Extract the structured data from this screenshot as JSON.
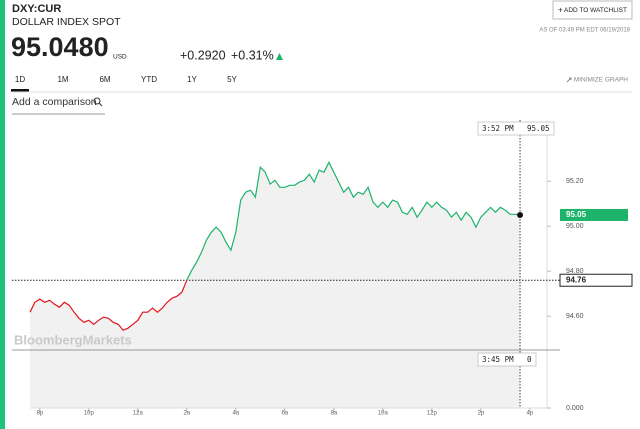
{
  "header": {
    "ticker": "DXY:CUR",
    "name": "DOLLAR INDEX SPOT",
    "price": "95.0480",
    "currency": "USD",
    "change": "+0.2920",
    "change_percent": "+0.31%",
    "watchlist_button": "ADD TO WATCHLIST",
    "as_of": "AS OF 03:49 PM EDT 06/19/2018"
  },
  "tabs": [
    "1D",
    "1M",
    "6M",
    "YTD",
    "1Y",
    "5Y"
  ],
  "active_tab": 0,
  "minimize": "MINIMIZE GRAPH",
  "comparison_placeholder": "Add a comparison",
  "watermark": "BloombergMarkets",
  "chart_data": {
    "type": "line",
    "color_above": "#1db36b",
    "color_below": "#e3131b",
    "previous_close": 94.76,
    "last_value": 95.05,
    "crosshair": {
      "time": "3:52 PM",
      "value": 95.05
    },
    "volume_yticks": [
      {
        "value": 0,
        "label": "0.000"
      }
    ],
    "volume_crosshair": {
      "time": "3:45 PM",
      "value": 0
    },
    "xlim": [
      19.6,
      40.7
    ],
    "ylim": [
      94.45,
      95.472
    ],
    "xticks": [
      {
        "value": 20,
        "label": "8p"
      },
      {
        "value": 22,
        "label": "10p"
      },
      {
        "value": 24,
        "label": "12a"
      },
      {
        "value": 26,
        "label": "2a"
      },
      {
        "value": 28,
        "label": "4a"
      },
      {
        "value": 30,
        "label": "6a"
      },
      {
        "value": 32,
        "label": "8a"
      },
      {
        "value": 34,
        "label": "10a"
      },
      {
        "value": 36,
        "label": "12p"
      },
      {
        "value": 38,
        "label": "2p"
      },
      {
        "value": 40,
        "label": "4p"
      }
    ],
    "yticks": [
      {
        "value": 94.6,
        "label": "94.60"
      },
      {
        "value": 94.8,
        "label": "94.80"
      },
      {
        "value": 95,
        "label": "95.00"
      },
      {
        "value": 95.2,
        "label": "95.20"
      }
    ],
    "x": [
      19.6,
      19.8,
      20,
      20.2,
      20.4,
      20.6,
      20.8,
      21,
      21.2,
      21.4,
      21.6,
      21.8,
      22,
      22.2,
      22.4,
      22.6,
      22.8,
      23,
      23.2,
      23.4,
      23.6,
      23.8,
      24,
      24.2,
      24.4,
      24.6,
      24.8,
      25,
      25.2,
      25.4,
      25.6,
      25.8,
      26,
      26.2,
      26.4,
      26.6,
      26.8,
      27,
      27.2,
      27.4,
      27.6,
      27.8,
      28,
      28.2,
      28.4,
      28.6,
      28.8,
      29,
      29.2,
      29.4,
      29.6,
      29.8,
      30,
      30.2,
      30.4,
      30.6,
      30.8,
      31,
      31.2,
      31.4,
      31.6,
      31.8,
      32,
      32.2,
      32.4,
      32.6,
      32.8,
      33,
      33.2,
      33.4,
      33.6,
      33.8,
      34,
      34.2,
      34.4,
      34.6,
      34.8,
      35,
      35.2,
      35.4,
      35.6,
      35.8,
      36,
      36.2,
      36.4,
      36.6,
      36.8,
      37,
      37.2,
      37.4,
      37.6,
      37.8,
      38,
      38.2,
      38.4,
      38.6,
      38.8,
      39,
      39.2,
      39.4,
      39.6
    ],
    "values": [
      94.618,
      94.662,
      94.676,
      94.662,
      94.671,
      94.653,
      94.64,
      94.662,
      94.649,
      94.618,
      94.591,
      94.573,
      94.582,
      94.564,
      94.582,
      94.596,
      94.591,
      94.573,
      94.564,
      94.538,
      94.547,
      94.564,
      94.582,
      94.618,
      94.618,
      94.636,
      94.618,
      94.636,
      94.662,
      94.68,
      94.689,
      94.707,
      94.76,
      94.804,
      94.84,
      94.884,
      94.938,
      94.973,
      94.996,
      94.973,
      94.929,
      94.893,
      94.973,
      95.116,
      95.151,
      95.16,
      95.129,
      95.262,
      95.24,
      95.187,
      95.204,
      95.173,
      95.173,
      95.182,
      95.182,
      95.196,
      95.204,
      95.231,
      95.196,
      95.249,
      95.24,
      95.284,
      95.24,
      95.196,
      95.151,
      95.173,
      95.129,
      95.151,
      95.142,
      95.173,
      95.107,
      95.084,
      95.107,
      95.084,
      95.116,
      95.107,
      95.062,
      95.053,
      95.084,
      95.04,
      95.071,
      95.107,
      95.084,
      95.107,
      95.084,
      95.071,
      95.04,
      95.062,
      95.027,
      95.062,
      95.04,
      94.996,
      95.04,
      95.062,
      95.084,
      95.062,
      95.084,
      95.071,
      95.053,
      95.053,
      95.05
    ]
  }
}
